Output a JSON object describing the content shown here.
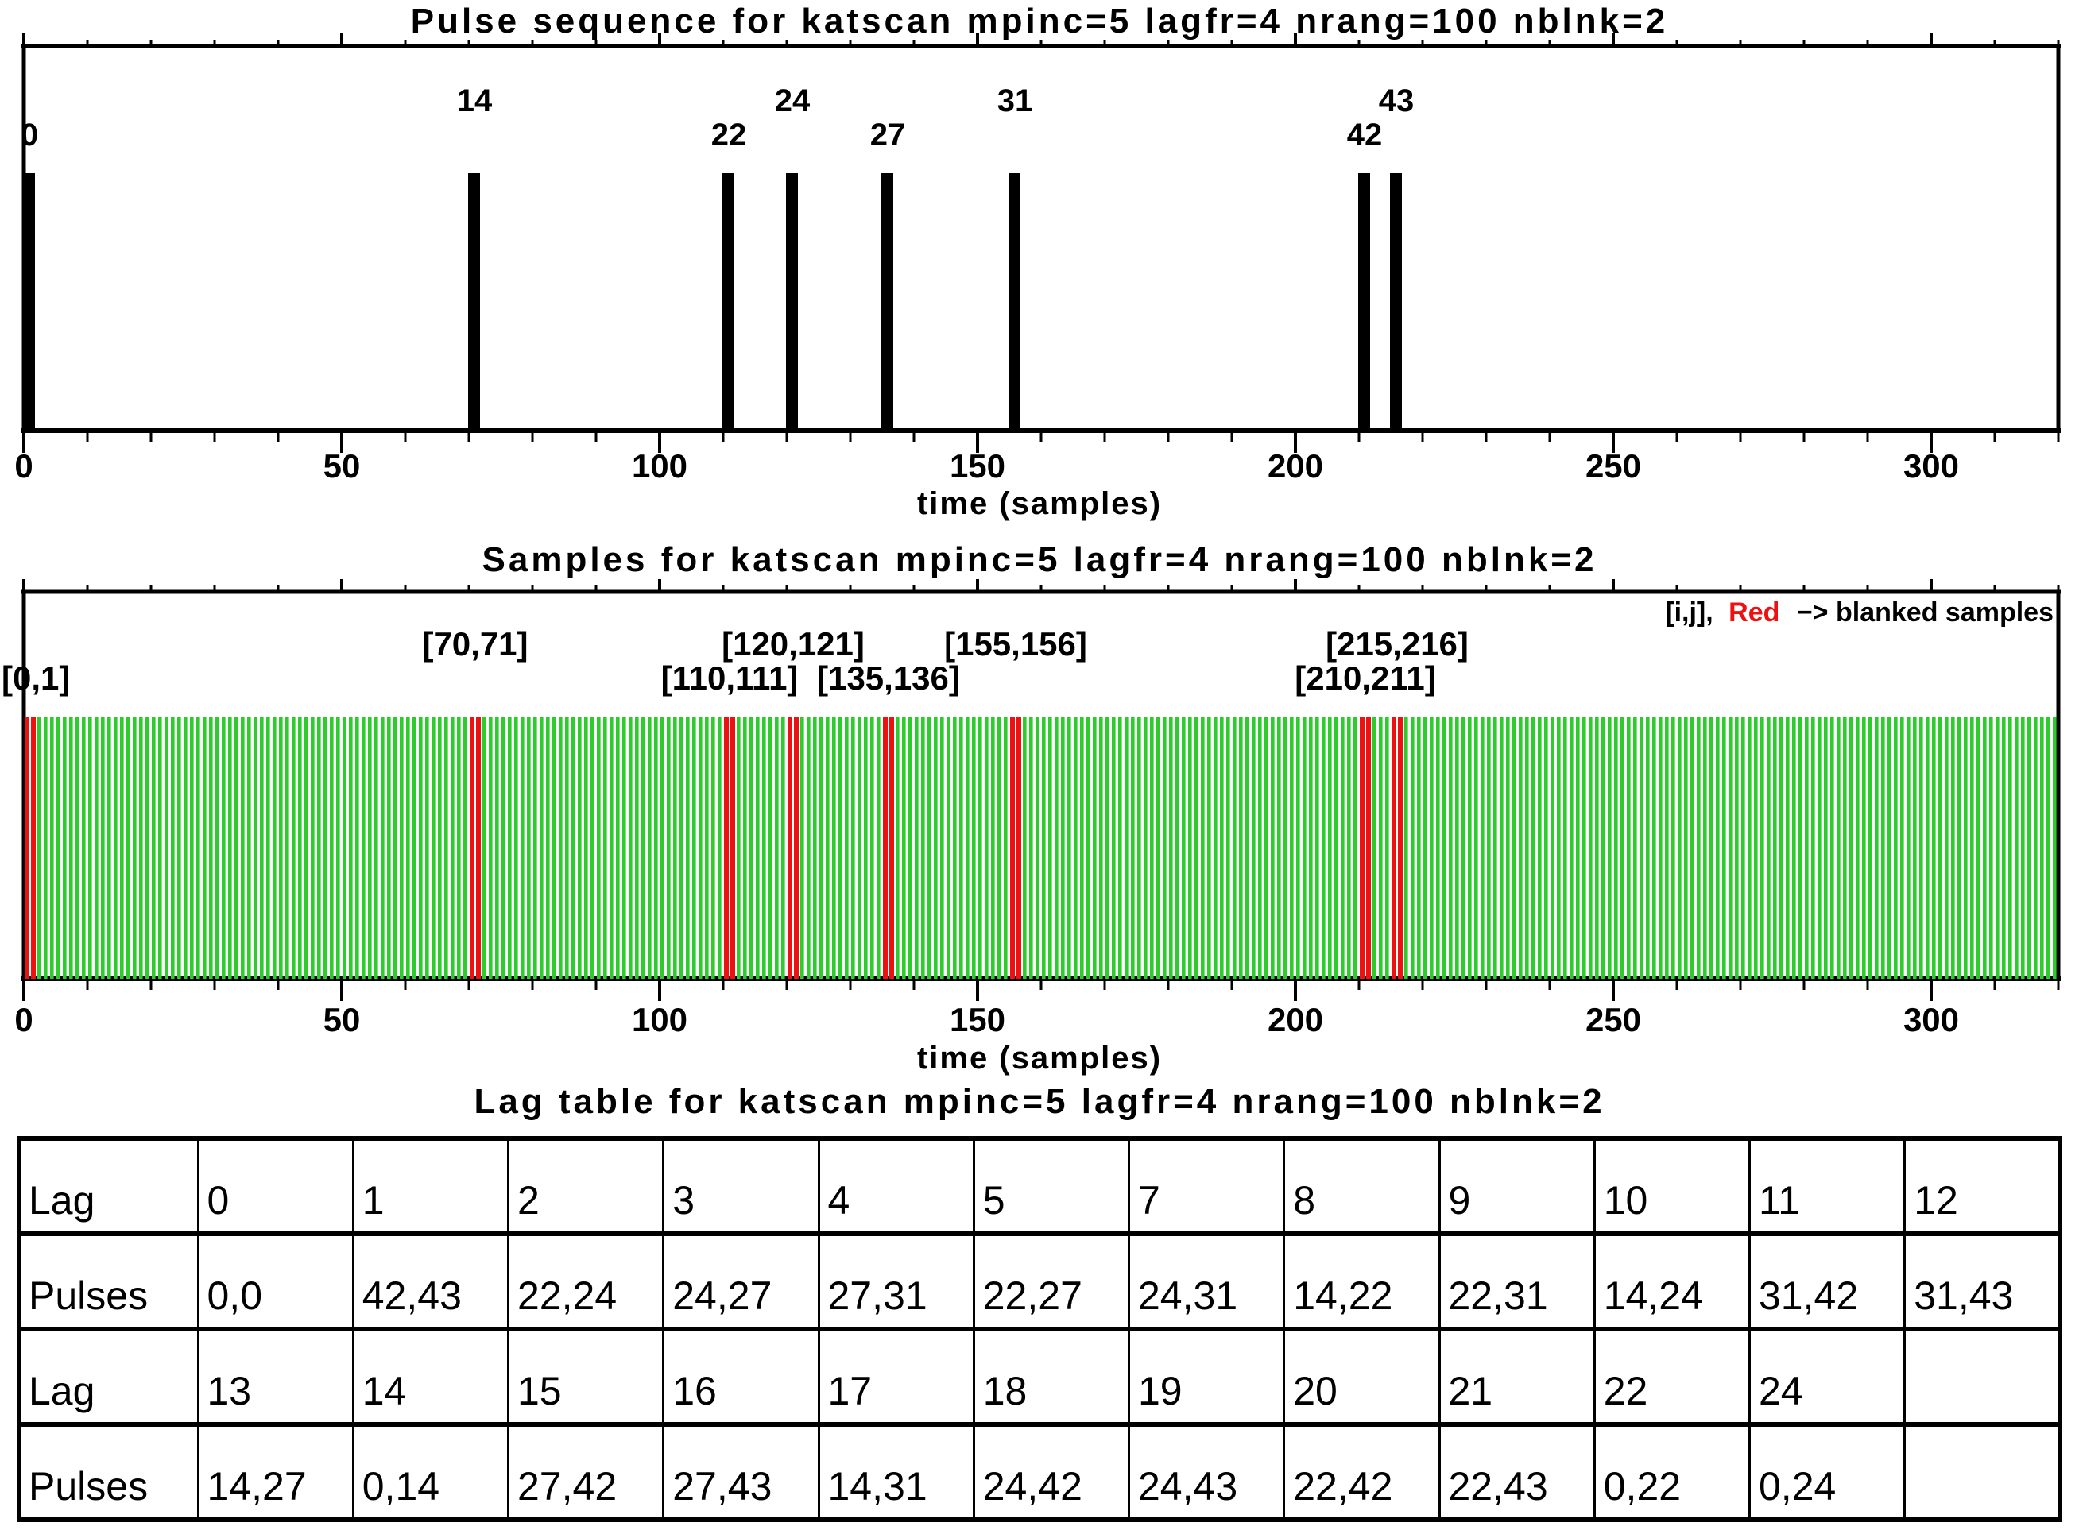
{
  "figure": {
    "background": "#ffffff",
    "accent_black": "#000000"
  },
  "chart_data": [
    {
      "type": "bar",
      "panel": "pulse-sequence",
      "title": "Pulse sequence for katscan mpinc=5 lagfr=4 nrang=100 nblnk=2",
      "xlabel": "time (samples)",
      "xlim": [
        0,
        320
      ],
      "xticks": [
        0,
        50,
        100,
        150,
        200,
        250,
        300
      ],
      "minor_tick_step": 10,
      "bar_color": "#000000",
      "pulses": [
        {
          "pulse": 0,
          "time": 0,
          "label_row": "lower"
        },
        {
          "pulse": 14,
          "time": 70,
          "label_row": "upper"
        },
        {
          "pulse": 22,
          "time": 110,
          "label_row": "lower"
        },
        {
          "pulse": 24,
          "time": 120,
          "label_row": "upper"
        },
        {
          "pulse": 27,
          "time": 135,
          "label_row": "lower"
        },
        {
          "pulse": 31,
          "time": 155,
          "label_row": "upper"
        },
        {
          "pulse": 42,
          "time": 210,
          "label_row": "lower"
        },
        {
          "pulse": 43,
          "time": 215,
          "label_row": "upper"
        }
      ]
    },
    {
      "type": "bar",
      "panel": "samples",
      "title": "Samples for katscan mpinc=5 lagfr=4 nrang=100 nblnk=2",
      "xlabel": "time (samples)",
      "xlim": [
        0,
        320
      ],
      "xticks": [
        0,
        50,
        100,
        150,
        200,
        250,
        300
      ],
      "minor_tick_step": 10,
      "n_samples": 320,
      "sample_color": "#2ccc2c",
      "blanked_color": "#ee1111",
      "blanked_samples": [
        0,
        1,
        70,
        71,
        110,
        111,
        120,
        121,
        135,
        136,
        155,
        156,
        210,
        211,
        215,
        216
      ],
      "blanked_pair_labels": [
        {
          "text": "[0,1]",
          "time": 0,
          "label_row": "lower"
        },
        {
          "text": "[70,71]",
          "time": 70,
          "label_row": "upper"
        },
        {
          "text": "[110,111]",
          "time": 110,
          "label_row": "lower"
        },
        {
          "text": "[120,121]",
          "time": 120,
          "label_row": "upper"
        },
        {
          "text": "[135,136]",
          "time": 135,
          "label_row": "lower"
        },
        {
          "text": "[155,156]",
          "time": 155,
          "label_row": "upper"
        },
        {
          "text": "[210,211]",
          "time": 210,
          "label_row": "lower"
        },
        {
          "text": "[215,216]",
          "time": 215,
          "label_row": "upper"
        }
      ],
      "legend": {
        "prefix": "[i,j],",
        "red_word": "Red",
        "suffix": "−> blanked samples"
      }
    },
    {
      "type": "table",
      "panel": "lag-table",
      "title": "Lag table for katscan mpinc=5 lagfr=4 nrang=100 nblnk=2",
      "rows": [
        [
          "Lag",
          "0",
          "1",
          "2",
          "3",
          "4",
          "5",
          "7",
          "8",
          "9",
          "10",
          "11",
          "12"
        ],
        [
          "Pulses",
          "0,0",
          "42,43",
          "22,24",
          "24,27",
          "27,31",
          "22,27",
          "24,31",
          "14,22",
          "22,31",
          "14,24",
          "31,42",
          "31,43"
        ],
        [
          "Lag",
          "13",
          "14",
          "15",
          "16",
          "17",
          "18",
          "19",
          "20",
          "21",
          "22",
          "24",
          ""
        ],
        [
          "Pulses",
          "14,27",
          "0,14",
          "27,42",
          "27,43",
          "14,31",
          "24,42",
          "24,43",
          "22,42",
          "22,43",
          "0,22",
          "0,24",
          ""
        ]
      ]
    }
  ]
}
